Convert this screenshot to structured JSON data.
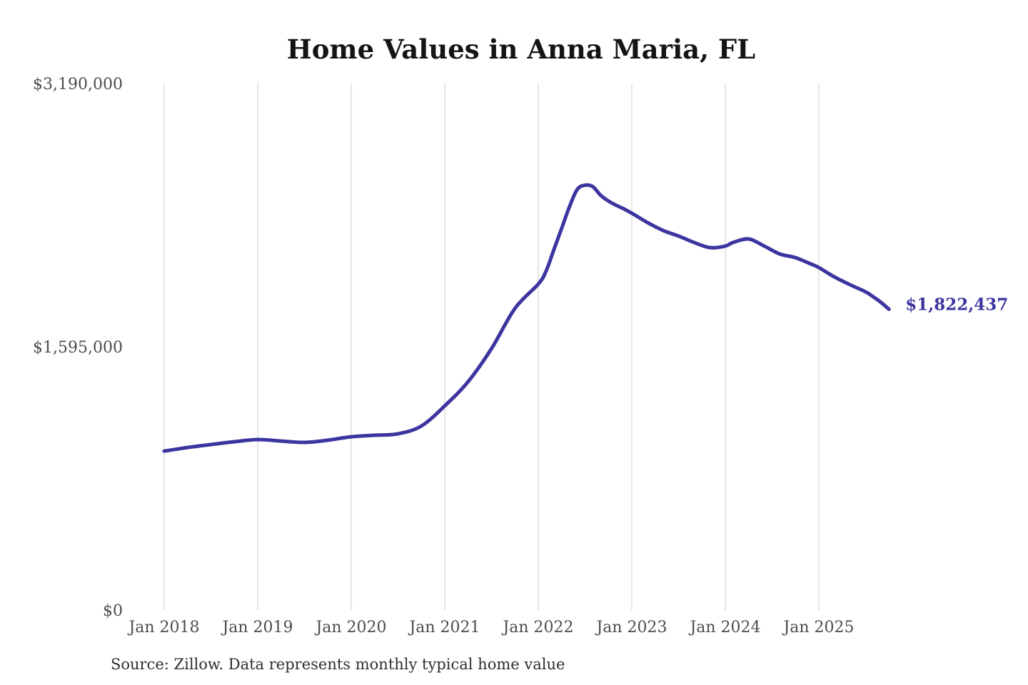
{
  "title": "Home Values in Anna Maria, FL",
  "source_note": "Source: Zillow. Data represents monthly typical home value",
  "colors": {
    "line": "#3c35a0",
    "end_label": "#3c35a0",
    "grid": "#cbcbcb",
    "axis_text": "#4d4d4d",
    "title_text": "#141414",
    "background": "#ffffff"
  },
  "chart_data": {
    "type": "line",
    "title": "Home Values in Anna Maria, FL",
    "xlabel": "",
    "ylabel": "",
    "ylim": [
      0,
      3190000
    ],
    "grid": "vertical-only",
    "legend": "none",
    "x_ticks": [
      {
        "label": "Jan 2018",
        "month": 0
      },
      {
        "label": "Jan 2019",
        "month": 12
      },
      {
        "label": "Jan 2020",
        "month": 24
      },
      {
        "label": "Jan 2021",
        "month": 36
      },
      {
        "label": "Jan 2022",
        "month": 48
      },
      {
        "label": "Jan 2023",
        "month": 60
      },
      {
        "label": "Jan 2024",
        "month": 72
      },
      {
        "label": "Jan 2025",
        "month": 84
      }
    ],
    "y_ticks": [
      {
        "label": "$0",
        "value": 0
      },
      {
        "label": "$1,595,000",
        "value": 1595000
      },
      {
        "label": "$3,190,000",
        "value": 3190000
      }
    ],
    "series": [
      {
        "name": "Monthly typical home value",
        "points": [
          [
            "2018-01",
            963000
          ],
          [
            "2018-04",
            985000
          ],
          [
            "2018-07",
            1003000
          ],
          [
            "2018-10",
            1020000
          ],
          [
            "2019-01",
            1033000
          ],
          [
            "2019-04",
            1024000
          ],
          [
            "2019-07",
            1016000
          ],
          [
            "2019-10",
            1029000
          ],
          [
            "2020-01",
            1050000
          ],
          [
            "2020-04",
            1059000
          ],
          [
            "2020-07",
            1068000
          ],
          [
            "2020-10",
            1115000
          ],
          [
            "2021-01",
            1237000
          ],
          [
            "2021-04",
            1384000
          ],
          [
            "2021-07",
            1584000
          ],
          [
            "2021-10",
            1827000
          ],
          [
            "2022-01",
            1975000
          ],
          [
            "2022-02",
            2053000
          ],
          [
            "2022-03",
            2183000
          ],
          [
            "2022-04",
            2313000
          ],
          [
            "2022-05",
            2443000
          ],
          [
            "2022-06",
            2548000
          ],
          [
            "2022-07",
            2574000
          ],
          [
            "2022-08",
            2565000
          ],
          [
            "2022-09",
            2513000
          ],
          [
            "2022-10",
            2478000
          ],
          [
            "2022-11",
            2452000
          ],
          [
            "2022-12",
            2430000
          ],
          [
            "2023-01",
            2404000
          ],
          [
            "2023-03",
            2348000
          ],
          [
            "2023-05",
            2300000
          ],
          [
            "2023-07",
            2266000
          ],
          [
            "2023-09",
            2227000
          ],
          [
            "2023-11",
            2196000
          ],
          [
            "2024-01",
            2205000
          ],
          [
            "2024-02",
            2227000
          ],
          [
            "2024-04",
            2248000
          ],
          [
            "2024-06",
            2205000
          ],
          [
            "2024-08",
            2157000
          ],
          [
            "2024-10",
            2135000
          ],
          [
            "2024-12",
            2096000
          ],
          [
            "2025-01",
            2075000
          ],
          [
            "2025-03",
            2018000
          ],
          [
            "2025-05",
            1971000
          ],
          [
            "2025-07",
            1928000
          ],
          [
            "2025-08",
            1897000
          ],
          [
            "2025-09",
            1863000
          ],
          [
            "2025-10",
            1822437
          ]
        ]
      }
    ],
    "end_annotation": {
      "label": "$1,822,437",
      "value": 1822437
    }
  }
}
